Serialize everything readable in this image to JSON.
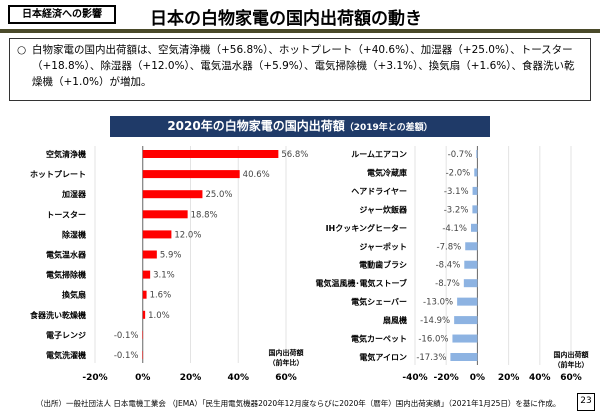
{
  "header": {
    "tag": "日本経済への影響",
    "title": "日本の白物家電の国内出荷額の動き"
  },
  "summary": {
    "bullet": "○",
    "text": "白物家電の国内出荷額は、空気清浄機（+56.8%）、ホットプレート（+40.6%）、加湿器（+25.0%）、トースター（+18.8%）、除湿器（+12.0%）、電気温水器（+5.9%）、電気掃除機（+3.1%）、換気扇（+1.6%）、食器洗い乾燥機（+1.0%）が増加。"
  },
  "banner": {
    "title": "2020年の白物家電の国内出荷額",
    "subtitle": "（2019年との差額）"
  },
  "chart_data": [
    {
      "type": "bar",
      "orientation": "horizontal",
      "color": "#ff0000",
      "xlim": [
        -20,
        60
      ],
      "xticks": [
        "-20%",
        "0%",
        "20%",
        "40%",
        "60%"
      ],
      "xlabel": "国内出荷額（前年比）",
      "grid": true,
      "categories": [
        "空気清浄機",
        "ホットプレート",
        "加湿器",
        "トースター",
        "除湿機",
        "電気温水器",
        "電気掃除機",
        "換気扇",
        "食器洗い乾燥機",
        "電子レンジ",
        "電気洗濯機"
      ],
      "values": [
        56.8,
        40.6,
        25.0,
        18.8,
        12.0,
        5.9,
        3.1,
        1.6,
        1.0,
        -0.1,
        -0.1
      ],
      "labels": [
        "56.8%",
        "40.6%",
        "25.0%",
        "18.8%",
        "12.0%",
        "5.9%",
        "3.1%",
        "1.6%",
        "1.0%",
        "-0.1%",
        "-0.1%"
      ]
    },
    {
      "type": "bar",
      "orientation": "horizontal",
      "color": "#8db3e2",
      "xlim": [
        -40,
        60
      ],
      "xticks": [
        "-40%",
        "-20%",
        "0%",
        "20%",
        "40%",
        "60%"
      ],
      "xlabel": "国内出荷額（前年比）",
      "grid": true,
      "categories": [
        "ルームエアコン",
        "電気冷蔵庫",
        "ヘアドライヤー",
        "ジャー炊飯器",
        "IHクッキングヒーター",
        "ジャーポット",
        "電動歯ブラシ",
        "電気温風機･電気ストーブ",
        "電気シェーバー",
        "扇風機",
        "電気カーペット",
        "電気アイロン"
      ],
      "values": [
        -0.7,
        -2.0,
        -3.1,
        -3.2,
        -4.1,
        -7.8,
        -8.4,
        -8.7,
        -13.0,
        -14.9,
        -16.0,
        -17.3
      ],
      "labels": [
        "-0.7%",
        "-2.0%",
        "-3.1%",
        "-3.2%",
        "-4.1%",
        "-7.8%",
        "-8.4%",
        "-8.7%",
        "-13.0%",
        "-14.9%",
        "-16.0%",
        "-17.3%"
      ]
    }
  ],
  "footer": {
    "source": "（出所）一般社団法人 日本電機工業会 （JEMA）「民生用電気機器2020年12月度ならびに2020年（暦年）国内出荷実績」（2021年1月25日）を基に作成。",
    "page": "23"
  }
}
